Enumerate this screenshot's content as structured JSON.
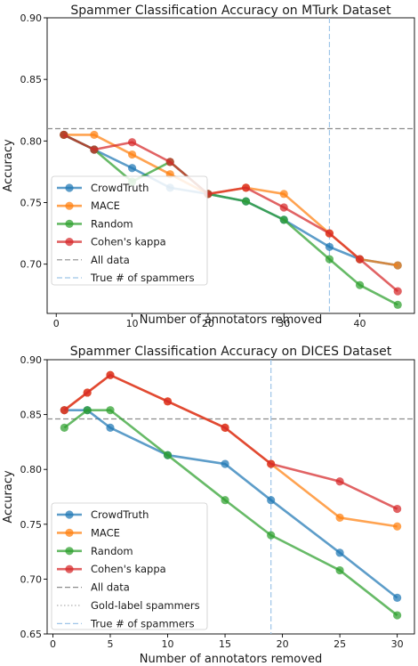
{
  "chart_data": [
    {
      "type": "line",
      "title": "Spammer Classification Accuracy on MTurk Dataset",
      "xlabel": "Number of annotators removed",
      "ylabel": "Accuracy",
      "xlim": [
        -1.2,
        47.2
      ],
      "ylim": [
        0.66,
        0.9
      ],
      "xticks": [
        0,
        10,
        20,
        30,
        40
      ],
      "xtick_labels": [
        "0",
        "10",
        "20",
        "30",
        "40"
      ],
      "yticks": [
        0.7,
        0.75,
        0.8,
        0.85,
        0.9
      ],
      "ytick_labels": [
        "0.70",
        "0.75",
        "0.80",
        "0.85",
        "0.90"
      ],
      "x": [
        1,
        5,
        10,
        15,
        20,
        25,
        30,
        36,
        40,
        45
      ],
      "series": [
        {
          "name": "CrowdTruth",
          "color": "#1f77b4",
          "values": [
            0.805,
            0.793,
            0.778,
            0.762,
            0.757,
            0.751,
            0.736,
            0.714,
            0.704,
            0.699
          ]
        },
        {
          "name": "MACE",
          "color": "#ff7f0e",
          "values": [
            0.805,
            0.805,
            0.789,
            0.773,
            0.757,
            0.762,
            0.757,
            0.725,
            0.704,
            0.699
          ]
        },
        {
          "name": "Random",
          "color": "#2ca02c",
          "values": [
            0.805,
            0.793,
            0.767,
            0.783,
            0.757,
            0.751,
            0.736,
            0.704,
            0.683,
            0.667
          ]
        },
        {
          "name": "Cohen's kappa",
          "color": "#d62728",
          "values": [
            0.805,
            0.793,
            0.799,
            0.783,
            0.757,
            0.762,
            0.746,
            0.725,
            0.704,
            0.678
          ]
        }
      ],
      "reference_lines": [
        {
          "name": "All data",
          "orientation": "horizontal",
          "value": 0.81,
          "style": "dashed",
          "color": "#8c8c8c"
        },
        {
          "name": "True # of spammers",
          "orientation": "vertical",
          "value": 36,
          "style": "dashed",
          "color": "#9ec5e8"
        }
      ],
      "legend": {
        "position": "lower-left",
        "entries": [
          "CrowdTruth",
          "MACE",
          "Random",
          "Cohen's kappa",
          "All data",
          "True # of spammers"
        ]
      },
      "grid": false
    },
    {
      "type": "line",
      "title": "Spammer Classification Accuracy on DICES Dataset",
      "xlabel": "Number of annotators removed",
      "ylabel": "Accuracy",
      "xlim": [
        -0.5,
        31.5
      ],
      "ylim": [
        0.65,
        0.9
      ],
      "xticks": [
        0,
        5,
        10,
        15,
        20,
        25,
        30
      ],
      "xtick_labels": [
        "0",
        "5",
        "10",
        "15",
        "20",
        "25",
        "30"
      ],
      "yticks": [
        0.65,
        0.7,
        0.75,
        0.8,
        0.85,
        0.9
      ],
      "ytick_labels": [
        "0.65",
        "0.70",
        "0.75",
        "0.80",
        "0.85",
        "0.90"
      ],
      "x": [
        1,
        3,
        5,
        10,
        15,
        19,
        25,
        30
      ],
      "series": [
        {
          "name": "CrowdTruth",
          "color": "#1f77b4",
          "values": [
            0.854,
            0.854,
            0.838,
            0.813,
            0.805,
            0.772,
            0.724,
            0.683
          ]
        },
        {
          "name": "MACE",
          "color": "#ff7f0e",
          "values": [
            0.854,
            0.87,
            0.886,
            0.862,
            0.838,
            0.805,
            0.756,
            0.748
          ]
        },
        {
          "name": "Random",
          "color": "#2ca02c",
          "values": [
            0.838,
            0.854,
            0.854,
            0.813,
            0.772,
            0.74,
            0.708,
            0.667
          ]
        },
        {
          "name": "Cohen's kappa",
          "color": "#d62728",
          "values": [
            0.854,
            0.87,
            0.886,
            0.862,
            0.838,
            0.805,
            0.789,
            0.764
          ]
        }
      ],
      "reference_lines": [
        {
          "name": "All data",
          "orientation": "horizontal",
          "value": 0.846,
          "style": "dashed",
          "color": "#8c8c8c"
        },
        {
          "name": "Gold-label spammers",
          "orientation": "none",
          "style": "dotted",
          "color": "#b0b0b0"
        },
        {
          "name": "True # of spammers",
          "orientation": "vertical",
          "value": 19,
          "style": "dashed",
          "color": "#9ec5e8"
        }
      ],
      "legend": {
        "position": "lower-left",
        "entries": [
          "CrowdTruth",
          "MACE",
          "Random",
          "Cohen's kappa",
          "All data",
          "Gold-label spammers",
          "True # of spammers"
        ]
      },
      "grid": false
    }
  ]
}
